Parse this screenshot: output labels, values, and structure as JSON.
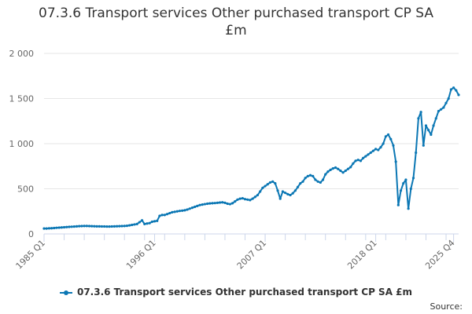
{
  "chart_data": {
    "type": "line",
    "title_line1": "07.3.6 Transport services Other purchased transport CP SA",
    "title_line2": "£m",
    "xlabel": "",
    "ylabel": "",
    "ylim": [
      0,
      2000
    ],
    "yticks": [
      0,
      500,
      1000,
      1500,
      2000
    ],
    "ytick_labels": [
      "0",
      "500",
      "1 000",
      "1 500",
      "2 000"
    ],
    "x_tick_labels": [
      {
        "label": "1985 Q1",
        "index": 0
      },
      {
        "label": "1996 Q1",
        "index": 44
      },
      {
        "label": "2007 Q1",
        "index": 88
      },
      {
        "label": "2018 Q1",
        "index": 132
      },
      {
        "label": "2025 Q4",
        "index": 163
      }
    ],
    "grid": true,
    "legend_position": "bottom",
    "source_label": "Source:",
    "series": [
      {
        "name": "07.3.6 Transport services Other purchased transport CP SA £m",
        "color": "#0b77b4",
        "values": [
          60,
          60,
          62,
          63,
          65,
          68,
          70,
          72,
          74,
          76,
          78,
          80,
          82,
          84,
          86,
          87,
          88,
          88,
          87,
          86,
          85,
          84,
          84,
          83,
          83,
          82,
          82,
          83,
          84,
          85,
          86,
          87,
          88,
          90,
          95,
          100,
          105,
          110,
          130,
          150,
          110,
          115,
          120,
          135,
          140,
          145,
          200,
          210,
          210,
          220,
          230,
          240,
          245,
          250,
          255,
          258,
          262,
          270,
          280,
          290,
          300,
          310,
          320,
          325,
          330,
          335,
          338,
          340,
          342,
          345,
          348,
          350,
          345,
          335,
          330,
          340,
          360,
          380,
          390,
          395,
          385,
          380,
          375,
          390,
          410,
          430,
          470,
          510,
          530,
          550,
          570,
          580,
          560,
          480,
          390,
          470,
          455,
          440,
          430,
          450,
          480,
          520,
          560,
          580,
          620,
          640,
          650,
          640,
          600,
          580,
          570,
          600,
          660,
          690,
          710,
          725,
          735,
          720,
          700,
          680,
          700,
          720,
          740,
          780,
          810,
          820,
          810,
          840,
          860,
          880,
          900,
          920,
          940,
          930,
          960,
          1000,
          1080,
          1100,
          1050,
          980,
          800,
          320,
          480,
          560,
          600,
          280,
          500,
          620,
          900,
          1280,
          1350,
          980,
          1200,
          1150,
          1100,
          1200,
          1280,
          1360,
          1380,
          1400,
          1450,
          1500,
          1600,
          1620,
          1590,
          1540
        ]
      }
    ]
  }
}
